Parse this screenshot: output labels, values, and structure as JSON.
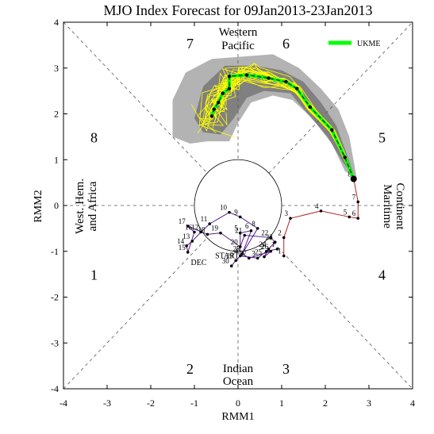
{
  "chart_data": {
    "type": "scatter",
    "title": "MJO Index Forecast for 09Jan2013-23Jan2013",
    "xlabel": "RMM1",
    "ylabel": "RMM2",
    "xlim": [
      -4,
      4
    ],
    "ylim": [
      -4,
      4
    ],
    "ticks": [
      "-4",
      "-3",
      "-2",
      "-1",
      "0",
      "1",
      "2",
      "3",
      "4"
    ],
    "phase_labels": [
      {
        "text": "1",
        "x": -3.3,
        "y": -1.5
      },
      {
        "text": "2",
        "x": -1.1,
        "y": -3.55
      },
      {
        "text": "3",
        "x": 1.1,
        "y": -3.55
      },
      {
        "text": "4",
        "x": 3.3,
        "y": -1.5
      },
      {
        "text": "5",
        "x": 3.3,
        "y": 1.5
      },
      {
        "text": "6",
        "x": 1.1,
        "y": 3.55
      },
      {
        "text": "7",
        "x": -1.1,
        "y": 3.55
      },
      {
        "text": "8",
        "x": -3.3,
        "y": 1.5
      }
    ],
    "region_labels": {
      "top": [
        "Western",
        "Pacific"
      ],
      "bottom": [
        "Indian",
        "Ocean"
      ],
      "left": [
        "West. Hem.",
        "and Africa"
      ],
      "right": [
        "Maritime",
        "Continent"
      ]
    },
    "legend": {
      "label": "UKME",
      "color": "#00ff00",
      "position": "top-right"
    },
    "colors": {
      "december": "#551a8b",
      "january": "#b22222",
      "ensemble": "#ffff00",
      "forecast": "#00ff00",
      "spread_outer": "#b3b3b3",
      "spread_inner": "#808080"
    },
    "month_labels": [
      {
        "text": "START",
        "x": -0.25,
        "y": -1.15
      },
      {
        "text": "DEC",
        "x": -0.9,
        "y": -1.3
      }
    ],
    "series": [
      {
        "name": "December 2012",
        "color": "#551a8b",
        "points": [
          {
            "label": "30",
            "x": -0.15,
            "y": -1.32
          },
          {
            "label": "29",
            "x": -0.05,
            "y": -1.2
          },
          {
            "label": "28",
            "x": 0.1,
            "y": -1.05
          },
          {
            "label": "27",
            "x": 0.25,
            "y": -1.15
          },
          {
            "label": "26",
            "x": 0.75,
            "y": -1.0
          },
          {
            "label": "25",
            "x": 0.6,
            "y": -1.12
          },
          {
            "label": "24",
            "x": 0.7,
            "y": -0.95
          },
          {
            "label": "23",
            "x": 0.85,
            "y": -0.8
          },
          {
            "label": "22",
            "x": 0.75,
            "y": -0.7
          },
          {
            "label": "21",
            "x": 0.15,
            "y": -0.65
          },
          {
            "label": "20",
            "x": 0.05,
            "y": -0.9
          },
          {
            "label": "19",
            "x": -0.4,
            "y": -0.6
          },
          {
            "label": "18",
            "x": -0.7,
            "y": -0.63
          },
          {
            "label": "17",
            "x": -1.15,
            "y": -0.45
          },
          {
            "label": "16",
            "x": -1.0,
            "y": -0.58
          },
          {
            "label": "15",
            "x": -1.15,
            "y": -1.02
          },
          {
            "label": "14",
            "x": -1.18,
            "y": -0.88
          },
          {
            "label": "13",
            "x": -1.05,
            "y": -0.78
          },
          {
            "label": "12",
            "x": -0.85,
            "y": -0.58
          },
          {
            "label": "11",
            "x": -0.65,
            "y": -0.4
          },
          {
            "label": "10",
            "x": -0.2,
            "y": -0.15
          },
          {
            "label": "9",
            "x": 0.05,
            "y": -0.25
          },
          {
            "label": "8",
            "x": 0.45,
            "y": -0.5
          },
          {
            "label": "7",
            "x": 0.1,
            "y": -1.05
          },
          {
            "label": "6",
            "x": 0.3,
            "y": -0.55
          },
          {
            "label": "5",
            "x": 0.05,
            "y": -0.6
          },
          {
            "label": "4",
            "x": 0.05,
            "y": -1.1
          },
          {
            "label": "3",
            "x": 0.45,
            "y": -1.15
          },
          {
            "label": "2",
            "x": 0.65,
            "y": -1.0
          },
          {
            "label": "1",
            "x": 0.9,
            "y": -0.95
          }
        ]
      },
      {
        "name": "January 2013",
        "color": "#b22222",
        "points": [
          {
            "label": "1",
            "x": 1.05,
            "y": -1.1
          },
          {
            "label": "2",
            "x": 1.05,
            "y": -0.7
          },
          {
            "label": "3",
            "x": 1.2,
            "y": -0.28
          },
          {
            "label": "4",
            "x": 1.9,
            "y": -0.12
          },
          {
            "label": "5",
            "x": 2.55,
            "y": -0.25
          },
          {
            "label": "6",
            "x": 2.75,
            "y": -0.28
          },
          {
            "label": "7",
            "x": 2.75,
            "y": 0.08
          },
          {
            "label": "8",
            "x": 2.65,
            "y": 0.58
          }
        ]
      },
      {
        "name": "UKME",
        "color": "#00ff00",
        "points": [
          {
            "x": 2.65,
            "y": 0.58
          },
          {
            "x": 2.45,
            "y": 1.05
          },
          {
            "x": 2.15,
            "y": 1.65
          },
          {
            "x": 1.65,
            "y": 2.15
          },
          {
            "x": 1.35,
            "y": 2.55
          },
          {
            "x": 1.1,
            "y": 2.7
          },
          {
            "x": 0.7,
            "y": 2.78
          },
          {
            "x": 0.2,
            "y": 2.85
          },
          {
            "x": -0.2,
            "y": 2.82
          },
          {
            "x": -0.2,
            "y": 2.55
          },
          {
            "x": -0.35,
            "y": 2.45
          },
          {
            "x": -0.45,
            "y": 2.25
          },
          {
            "x": -0.55,
            "y": 2.1
          },
          {
            "x": -0.6,
            "y": 1.95
          }
        ]
      }
    ]
  }
}
